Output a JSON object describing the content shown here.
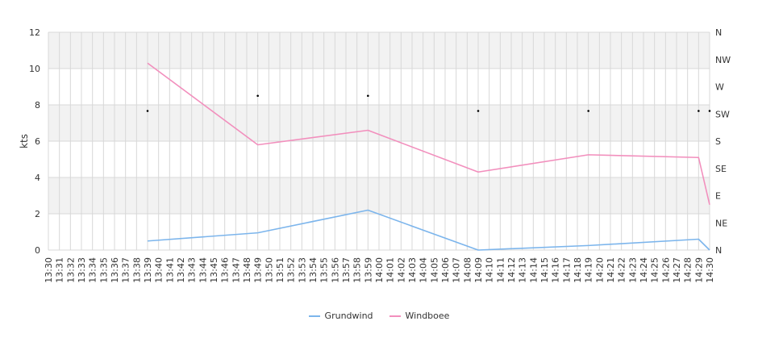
{
  "chart_data": {
    "type": "line",
    "ylabel": "kts",
    "ylim": [
      0,
      12
    ],
    "yticks": [
      0,
      2,
      4,
      6,
      8,
      10,
      12
    ],
    "x_categories": [
      "13:30",
      "13:31",
      "13:32",
      "13:33",
      "13:34",
      "13:35",
      "13:36",
      "13:37",
      "13:38",
      "13:39",
      "13:40",
      "13:41",
      "13:42",
      "13:43",
      "13:44",
      "13:45",
      "13:46",
      "13:47",
      "13:48",
      "13:49",
      "13:50",
      "13:51",
      "13:52",
      "13:53",
      "13:54",
      "13:55",
      "13:56",
      "13:57",
      "13:58",
      "13:59",
      "14:00",
      "14:01",
      "14:02",
      "14:03",
      "14:04",
      "14:05",
      "14:06",
      "14:07",
      "14:08",
      "14:09",
      "14:10",
      "14:11",
      "14:12",
      "14:13",
      "14:14",
      "14:15",
      "14:16",
      "14:17",
      "14:18",
      "14:19",
      "14:20",
      "14:21",
      "14:22",
      "14:23",
      "14:24",
      "14:25",
      "14:26",
      "14:27",
      "14:28",
      "14:29",
      "14:30"
    ],
    "series": [
      {
        "name": "Grundwind",
        "color": "#7cb5ec",
        "x": [
          "13:39",
          "13:49",
          "13:59",
          "14:09",
          "14:19",
          "14:29",
          "14:30"
        ],
        "values": [
          0.5,
          0.95,
          2.2,
          0.0,
          0.25,
          0.6,
          0.0
        ]
      },
      {
        "name": "Windboee",
        "color": "#f28fbd",
        "x": [
          "13:39",
          "13:49",
          "13:59",
          "14:09",
          "14:19",
          "14:29",
          "14:30"
        ],
        "values": [
          10.3,
          5.8,
          6.6,
          4.3,
          5.25,
          5.1,
          2.5
        ]
      }
    ],
    "direction_axis": {
      "labels": [
        "N",
        "NE",
        "E",
        "SE",
        "S",
        "SW",
        "W",
        "NW",
        "N"
      ],
      "range": [
        0,
        360
      ]
    },
    "direction_points": {
      "x": [
        "13:39",
        "13:49",
        "13:59",
        "14:09",
        "14:19",
        "14:29",
        "14:30"
      ],
      "values": [
        230,
        255,
        255,
        230,
        230,
        230,
        230
      ]
    },
    "grid": true,
    "legend_position": "bottom"
  },
  "colors": {
    "band": "#f2f2f2",
    "grid": "#d8d8d8",
    "axis_text": "#333333",
    "marker": "#000000"
  }
}
